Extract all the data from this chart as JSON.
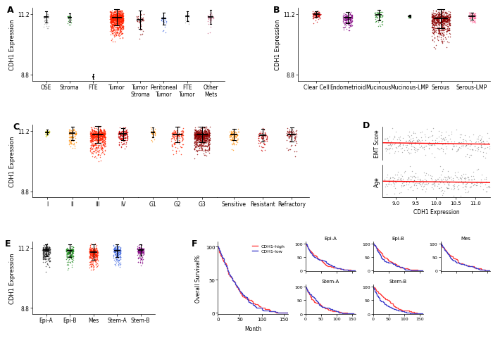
{
  "panel_A": {
    "ylabel": "CDH1 Expression",
    "ylim": [
      8.55,
      11.45
    ],
    "yticks": [
      8.8,
      11.2
    ],
    "groups": [
      "OSE",
      "Stroma",
      "FTE",
      "Tumor",
      "Tumor\nStroma",
      "Peritoneal\nTumor",
      "FTE\nTumor",
      "Other\nMets"
    ],
    "colors": [
      "#aaaaaa",
      "#228B22",
      "#aaaaaa",
      "#FF2200",
      "#8B1010",
      "#4169E1",
      "#aaaaaa",
      "#CC6688"
    ],
    "n_points": [
      28,
      22,
      4,
      900,
      40,
      22,
      14,
      32
    ],
    "means": [
      11.08,
      11.07,
      8.72,
      11.07,
      10.97,
      11.02,
      11.12,
      11.08
    ],
    "stds": [
      0.15,
      0.11,
      0.06,
      0.22,
      0.24,
      0.16,
      0.13,
      0.19
    ],
    "lower_tails": [
      0.3,
      0.2,
      0.0,
      0.6,
      0.45,
      0.35,
      0.25,
      0.35
    ],
    "spreads": [
      0.1,
      0.09,
      0.03,
      0.28,
      0.16,
      0.11,
      0.09,
      0.12
    ]
  },
  "panel_B": {
    "ylabel": "CDH1 Expression",
    "ylim": [
      8.55,
      11.45
    ],
    "yticks": [
      8.8,
      11.2
    ],
    "groups": [
      "Clear Cell",
      "Endometrioid",
      "Mucinous",
      "Mucinous-LMP",
      "Serous",
      "Serous-LMP"
    ],
    "colors": [
      "#CC0000",
      "#800080",
      "#228B22",
      "#228B22",
      "#8B0000",
      "#FF6699"
    ],
    "n_points": [
      85,
      160,
      55,
      10,
      600,
      75
    ],
    "means": [
      11.2,
      11.07,
      11.16,
      11.12,
      11.02,
      11.12
    ],
    "stds": [
      0.08,
      0.15,
      0.14,
      0.04,
      0.25,
      0.09
    ],
    "lower_tails": [
      0.25,
      0.45,
      0.35,
      0.05,
      0.7,
      0.2
    ],
    "spreads": [
      0.13,
      0.15,
      0.13,
      0.05,
      0.3,
      0.13
    ]
  },
  "panel_C": {
    "ylabel": "CDH1 Expression",
    "ylim": [
      8.55,
      11.45
    ],
    "yticks": [
      8.8,
      11.2
    ],
    "groups1": [
      "I",
      "II",
      "III",
      "IV"
    ],
    "colors1": [
      "#CCCC00",
      "#FF8C00",
      "#FF2200",
      "#CC0000"
    ],
    "n_points1": [
      28,
      85,
      600,
      160
    ],
    "means1": [
      11.15,
      11.1,
      11.05,
      11.08
    ],
    "stds1": [
      0.06,
      0.18,
      0.22,
      0.16
    ],
    "lower_tails1": [
      0.15,
      0.4,
      0.65,
      0.45
    ],
    "spreads1": [
      0.09,
      0.15,
      0.3,
      0.18
    ],
    "groups2": [
      "G1",
      "G2",
      "G3"
    ],
    "colors2": [
      "#FF8C00",
      "#FF2200",
      "#8B0000"
    ],
    "n_points2": [
      28,
      120,
      700
    ],
    "means2": [
      11.15,
      11.05,
      11.05
    ],
    "stds2": [
      0.13,
      0.2,
      0.2
    ],
    "lower_tails2": [
      0.15,
      0.5,
      0.6
    ],
    "spreads2": [
      0.1,
      0.25,
      0.32
    ],
    "groups3": [
      "Sensitive",
      "Resistant",
      "Refractory"
    ],
    "colors3": [
      "#FF8C00",
      "#CC0000",
      "#8B0000"
    ],
    "n_points3": [
      90,
      65,
      85
    ],
    "means3": [
      11.05,
      11.02,
      11.05
    ],
    "stds3": [
      0.15,
      0.17,
      0.19
    ],
    "lower_tails3": [
      0.4,
      0.35,
      0.4
    ],
    "spreads3": [
      0.16,
      0.16,
      0.18
    ]
  },
  "panel_D": {
    "n_points_emt": 300,
    "n_points_age": 300,
    "dot_color": "#666666",
    "line_color": "#FF0000"
  },
  "panel_E": {
    "ylabel": "CDH1 Expression",
    "ylim": [
      8.55,
      11.45
    ],
    "yticks": [
      8.8,
      11.2
    ],
    "groups": [
      "Epi-A",
      "Epi-B",
      "Mes",
      "Stem-A",
      "Stem-B"
    ],
    "colors": [
      "#333333",
      "#228B22",
      "#FF2200",
      "#4169E1",
      "#800080"
    ],
    "n_points": [
      220,
      180,
      280,
      170,
      120
    ],
    "means": [
      11.1,
      11.08,
      11.02,
      11.08,
      11.1
    ],
    "stds": [
      0.16,
      0.17,
      0.2,
      0.17,
      0.15
    ],
    "lower_tails": [
      0.45,
      0.5,
      0.55,
      0.45,
      0.4
    ],
    "spreads": [
      0.16,
      0.15,
      0.18,
      0.16,
      0.14
    ]
  },
  "panel_F": {
    "xlabel": "Month",
    "ylabel": "Overall Survival%",
    "subpanels": [
      "Epi-A",
      "Epi-B",
      "Mes",
      "Stem-A",
      "Stem-B"
    ],
    "line_high_color": "#FF4444",
    "line_low_color": "#4444CC",
    "legend_high": "CDH1-high",
    "legend_low": "CDH1-low"
  },
  "background_color": "#ffffff"
}
